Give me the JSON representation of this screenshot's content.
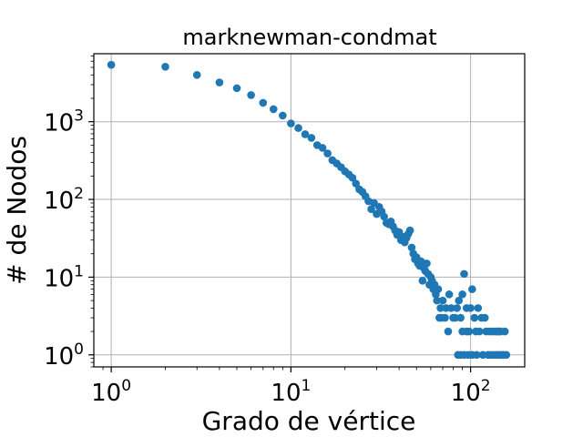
{
  "chart_data": {
    "type": "scatter",
    "title": "marknewman-condmat",
    "xlabel": "Grado de vértice",
    "ylabel": "# de Nodos",
    "xscale": "log",
    "yscale": "log",
    "xlim": [
      0.8,
      200
    ],
    "ylim": [
      0.7,
      7500
    ],
    "grid": true,
    "color": "#1f77b4",
    "x_ticks": [
      {
        "base": "10",
        "exp": "0",
        "value": 1
      },
      {
        "base": "10",
        "exp": "1",
        "value": 10
      },
      {
        "base": "10",
        "exp": "2",
        "value": 100
      }
    ],
    "y_ticks": [
      {
        "base": "10",
        "exp": "0",
        "value": 1
      },
      {
        "base": "10",
        "exp": "1",
        "value": 10
      },
      {
        "base": "10",
        "exp": "2",
        "value": 100
      },
      {
        "base": "10",
        "exp": "3",
        "value": 1000
      }
    ],
    "points": [
      [
        1,
        5400
      ],
      [
        2,
        5100
      ],
      [
        3,
        4000
      ],
      [
        4,
        3200
      ],
      [
        5,
        2700
      ],
      [
        6,
        2200
      ],
      [
        7,
        1750
      ],
      [
        8,
        1450
      ],
      [
        9,
        1200
      ],
      [
        10,
        950
      ],
      [
        11,
        830
      ],
      [
        12,
        690
      ],
      [
        13,
        620
      ],
      [
        14,
        500
      ],
      [
        15,
        460
      ],
      [
        16,
        390
      ],
      [
        17,
        320
      ],
      [
        18,
        290
      ],
      [
        19,
        260
      ],
      [
        20,
        230
      ],
      [
        21,
        210
      ],
      [
        22,
        190
      ],
      [
        23,
        160
      ],
      [
        24,
        135
      ],
      [
        25,
        125
      ],
      [
        26,
        110
      ],
      [
        27,
        95
      ],
      [
        28,
        75
      ],
      [
        29,
        90
      ],
      [
        30,
        65
      ],
      [
        31,
        80
      ],
      [
        32,
        70
      ],
      [
        33,
        60
      ],
      [
        34,
        50
      ],
      [
        35,
        48
      ],
      [
        36,
        52
      ],
      [
        37,
        45
      ],
      [
        38,
        40
      ],
      [
        39,
        35
      ],
      [
        40,
        38
      ],
      [
        41,
        30
      ],
      [
        42,
        33
      ],
      [
        43,
        28
      ],
      [
        44,
        32
      ],
      [
        45,
        36
      ],
      [
        46,
        40
      ],
      [
        47,
        24
      ],
      [
        48,
        20
      ],
      [
        49,
        17
      ],
      [
        50,
        18
      ],
      [
        51,
        15
      ],
      [
        52,
        14
      ],
      [
        53,
        16
      ],
      [
        54,
        9
      ],
      [
        55,
        13
      ],
      [
        56,
        12
      ],
      [
        57,
        15
      ],
      [
        58,
        11
      ],
      [
        59,
        8
      ],
      [
        60,
        10
      ],
      [
        61,
        9
      ],
      [
        62,
        7
      ],
      [
        63,
        8
      ],
      [
        64,
        6
      ],
      [
        65,
        5
      ],
      [
        66,
        7
      ],
      [
        67,
        3
      ],
      [
        68,
        4
      ],
      [
        69,
        3
      ],
      [
        70,
        5
      ],
      [
        72,
        3
      ],
      [
        73,
        4
      ],
      [
        75,
        2
      ],
      [
        76,
        6
      ],
      [
        78,
        4
      ],
      [
        80,
        3
      ],
      [
        82,
        3
      ],
      [
        84,
        4
      ],
      [
        86,
        5
      ],
      [
        88,
        3
      ],
      [
        90,
        6
      ],
      [
        92,
        11
      ],
      [
        95,
        4
      ],
      [
        97,
        1
      ],
      [
        98,
        2
      ],
      [
        100,
        4
      ],
      [
        102,
        7
      ],
      [
        105,
        3
      ],
      [
        107,
        2
      ],
      [
        108,
        1
      ],
      [
        110,
        4
      ],
      [
        112,
        2
      ],
      [
        115,
        3
      ],
      [
        117,
        1
      ],
      [
        120,
        3
      ],
      [
        122,
        2
      ],
      [
        125,
        1
      ],
      [
        127,
        2
      ],
      [
        130,
        1
      ],
      [
        132,
        2
      ],
      [
        135,
        1
      ],
      [
        137,
        2
      ],
      [
        140,
        1
      ],
      [
        142,
        2
      ],
      [
        145,
        1
      ],
      [
        147,
        2
      ],
      [
        150,
        1
      ],
      [
        152,
        1
      ],
      [
        155,
        2
      ],
      [
        158,
        1
      ],
      [
        85,
        1
      ],
      [
        88,
        1
      ],
      [
        92,
        1
      ],
      [
        102,
        1
      ],
      [
        90,
        2
      ],
      [
        95,
        2
      ],
      [
        140,
        2
      ],
      [
        145,
        2
      ]
    ]
  }
}
